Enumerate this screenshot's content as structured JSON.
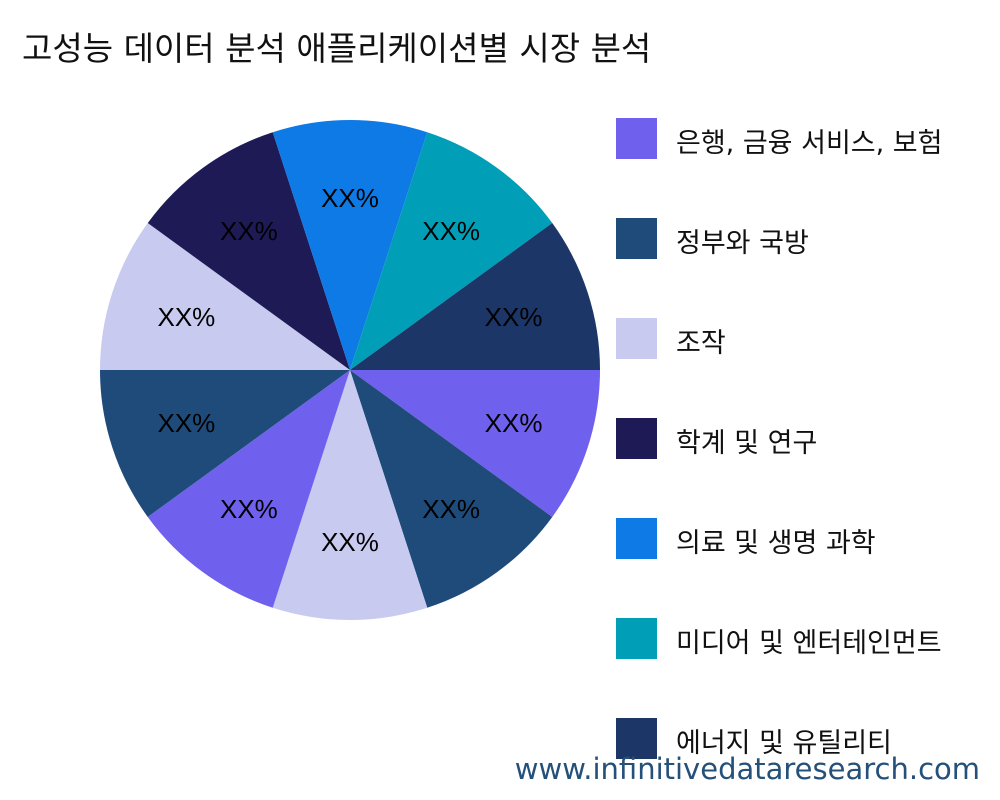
{
  "chart_data": {
    "type": "pie",
    "title": "고성능 데이터 분석 애플리케이션별 시장 분석",
    "categories": [
      "은행, 금융 서비스, 보험",
      "정부와 국방",
      "조작",
      "학계 및 연구",
      "의료 및 생명 과학",
      "미디어 및 엔터테인먼트",
      "에너지 및 유틸리티"
    ],
    "colors": [
      "#7060ee",
      "#1f4b7a",
      "#c8caf0",
      "#1e1a56",
      "#0e7ae6",
      "#009fb7",
      "#1c3668"
    ],
    "slices": [
      {
        "category": 0,
        "value": 1,
        "label": "XX%"
      },
      {
        "category": 1,
        "value": 1,
        "label": "XX%"
      },
      {
        "category": 2,
        "value": 1,
        "label": "XX%"
      },
      {
        "category": 0,
        "value": 1,
        "label": "XX%"
      },
      {
        "category": 1,
        "value": 1,
        "label": "XX%"
      },
      {
        "category": 2,
        "value": 1,
        "label": "XX%"
      },
      {
        "category": 3,
        "value": 1,
        "label": "XX%"
      },
      {
        "category": 4,
        "value": 1,
        "label": "XX%"
      },
      {
        "category": 5,
        "value": 1,
        "label": "XX%"
      },
      {
        "category": 6,
        "value": 1,
        "label": "XX%"
      }
    ],
    "legend_position": "right"
  },
  "watermark": "www.infinitivedataresearch.com"
}
